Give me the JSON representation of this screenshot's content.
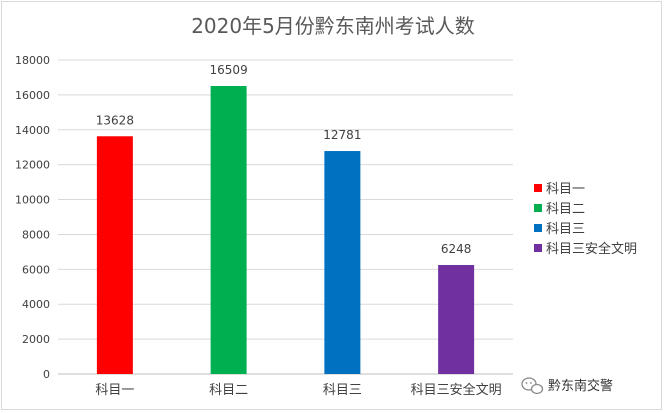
{
  "chart_data": {
    "type": "bar",
    "title": "2020年5月份黔东南州考试人数",
    "categories": [
      "科目一",
      "科目二",
      "科目三",
      "科目三安全文明"
    ],
    "values": [
      13628,
      16509,
      12781,
      6248
    ],
    "colors": [
      "#ff0000",
      "#00b050",
      "#0070c0",
      "#7030a0"
    ],
    "ylim": [
      0,
      18000
    ],
    "yticks": [
      0,
      2000,
      4000,
      6000,
      8000,
      10000,
      12000,
      14000,
      16000,
      18000
    ],
    "grid": true,
    "legend": {
      "position": "right",
      "entries": [
        "科目一",
        "科目二",
        "科目三",
        "科目三安全文明"
      ]
    }
  },
  "watermark": {
    "text": "黔东南交警",
    "icon": "wechat-icon"
  }
}
